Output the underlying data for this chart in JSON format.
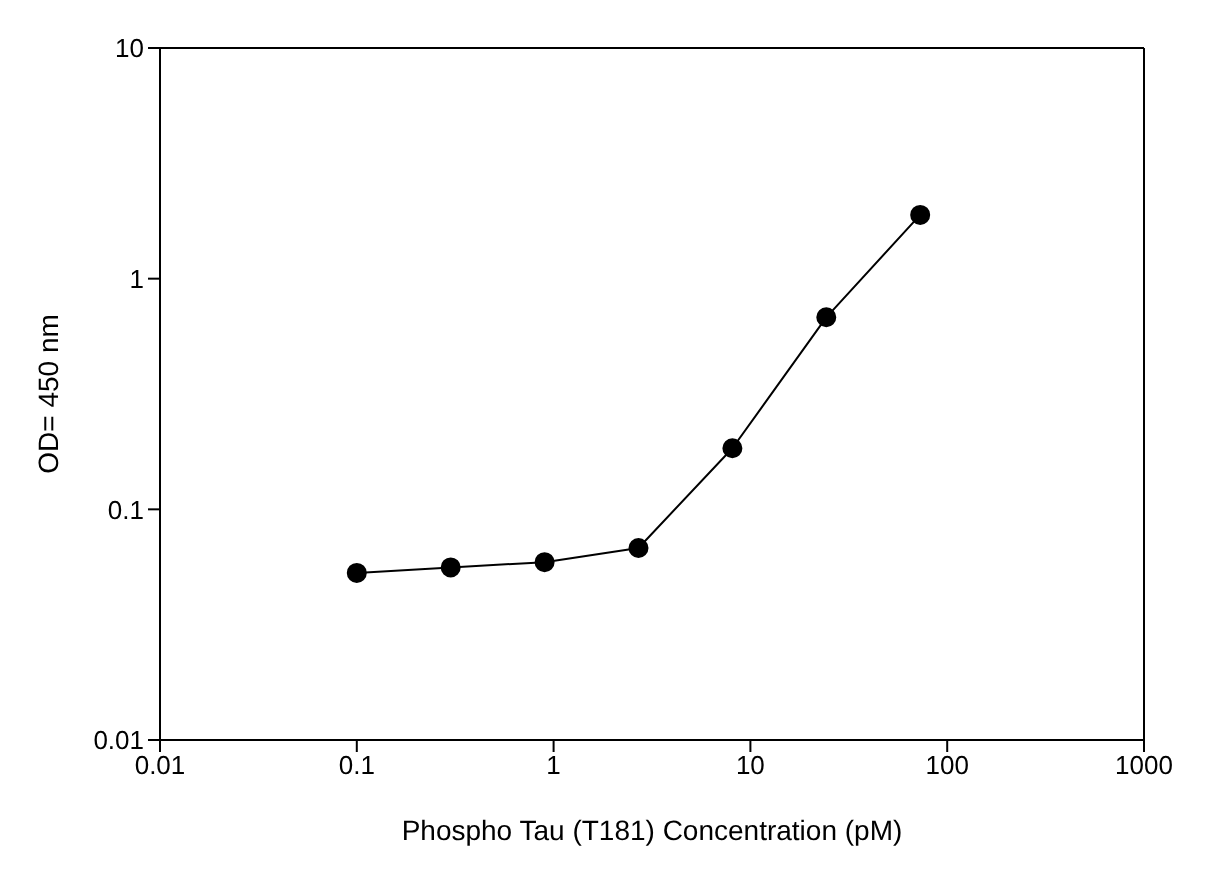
{
  "chart_data": {
    "type": "line",
    "xlabel": "Phospho Tau (T181) Concentration (pM)",
    "ylabel": "OD= 450 nm",
    "x": [
      0.1,
      0.3,
      0.9,
      2.7,
      8.1,
      24.3,
      72.9
    ],
    "series": [
      {
        "color": "#000000",
        "values": [
          0.053,
          0.056,
          0.059,
          0.068,
          0.184,
          0.68,
          1.89
        ]
      }
    ],
    "log": "xy",
    "xlim": [
      0.01,
      1000
    ],
    "xticks": [
      0.01,
      0.1,
      1,
      10,
      100,
      1000
    ],
    "ylim": [
      0.01,
      10
    ],
    "yticks": [
      0.01,
      0.1,
      1,
      10
    ],
    "grid": false,
    "legend": false,
    "marker": "circle",
    "line_style": "solid"
  }
}
